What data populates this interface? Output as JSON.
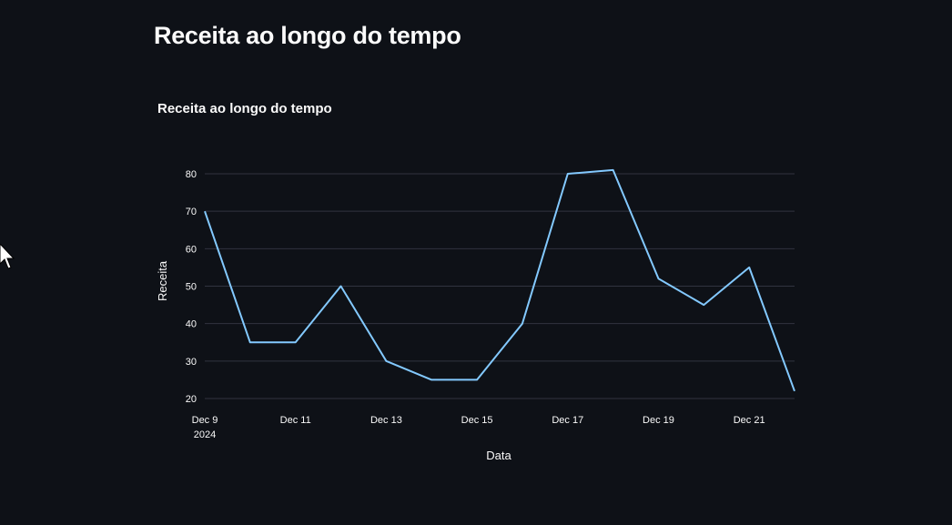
{
  "header": {
    "title": "Receita ao longo do tempo"
  },
  "chart_data": {
    "type": "line",
    "title": "Receita ao longo do tempo",
    "xlabel": "Data",
    "ylabel": "Receita",
    "x": [
      "2024-12-09",
      "2024-12-10",
      "2024-12-11",
      "2024-12-12",
      "2024-12-13",
      "2024-12-14",
      "2024-12-15",
      "2024-12-16",
      "2024-12-17",
      "2024-12-18",
      "2024-12-19",
      "2024-12-20",
      "2024-12-21",
      "2024-12-22"
    ],
    "series": [
      {
        "values": [
          70,
          35,
          35,
          50,
          30,
          25,
          25,
          40,
          80,
          81,
          52,
          45,
          55,
          22
        ]
      }
    ],
    "ylim": [
      20,
      80
    ],
    "y_ticks": [
      20,
      30,
      40,
      50,
      60,
      70,
      80
    ],
    "x_tick_labels": [
      {
        "date": "2024-12-09",
        "label": "Dec 9",
        "sublabel": "2024"
      },
      {
        "date": "2024-12-11",
        "label": "Dec 11"
      },
      {
        "date": "2024-12-13",
        "label": "Dec 13"
      },
      {
        "date": "2024-12-15",
        "label": "Dec 15"
      },
      {
        "date": "2024-12-17",
        "label": "Dec 17"
      },
      {
        "date": "2024-12-19",
        "label": "Dec 19"
      },
      {
        "date": "2024-12-21",
        "label": "Dec 21"
      }
    ],
    "grid": true,
    "line_color": "#83c9ff",
    "grid_color": "#31333f"
  }
}
